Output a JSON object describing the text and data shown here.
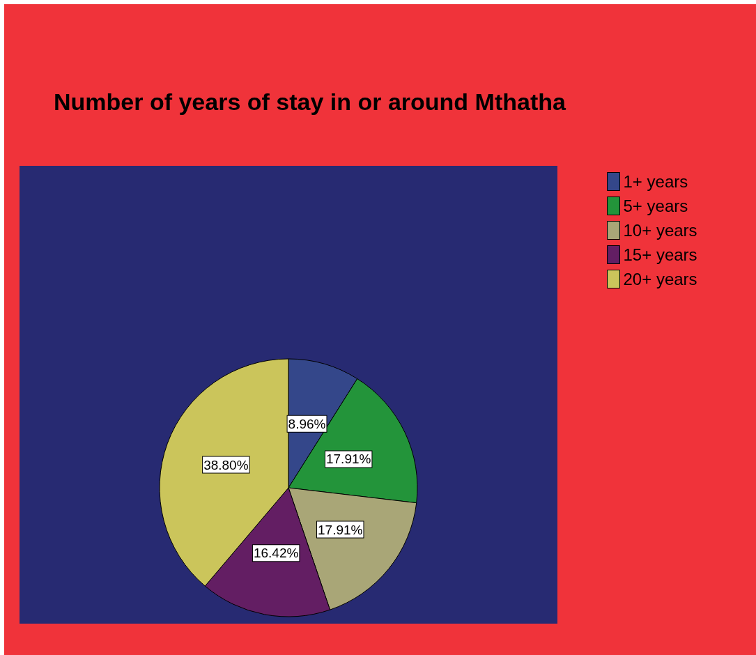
{
  "chart_data": {
    "type": "pie",
    "title": "Number of years of stay in or around Mthatha",
    "categories": [
      "1+ years",
      "5+ years",
      "10+ years",
      "15+ years",
      "20+ years"
    ],
    "values": [
      8.96,
      17.91,
      17.91,
      16.42,
      38.8
    ],
    "value_labels": [
      "8.96%",
      "17.91%",
      "17.91%",
      "16.42%",
      "38.80%"
    ],
    "colors": [
      "#34478a",
      "#23943a",
      "#a9a677",
      "#631e63",
      "#cbc55b"
    ],
    "legend": "top right"
  }
}
